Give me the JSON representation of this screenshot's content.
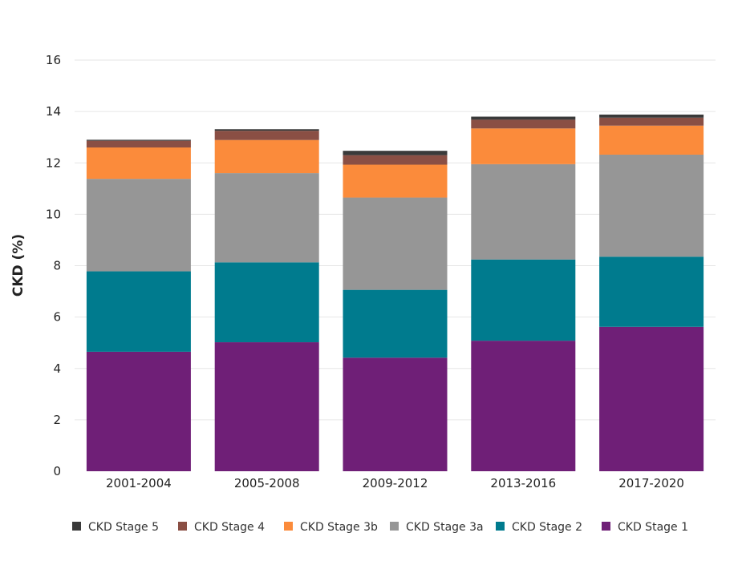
{
  "chart_data": {
    "type": "bar",
    "stacked": true,
    "title": "",
    "xlabel": "",
    "ylabel": "CKD (%)",
    "ylim": [
      0,
      16
    ],
    "yticks": [
      0,
      2,
      4,
      6,
      8,
      10,
      12,
      14,
      16
    ],
    "categories": [
      "2001-2004",
      "2005-2008",
      "2009-2012",
      "2013-2016",
      "2017-2020"
    ],
    "series": [
      {
        "name": "CKD Stage 1",
        "color": "#6f1f77",
        "values": [
          4.65,
          5.02,
          4.42,
          5.08,
          5.62
        ]
      },
      {
        "name": "CKD Stage 2",
        "color": "#007b8e",
        "values": [
          3.13,
          3.11,
          2.64,
          3.16,
          2.73
        ]
      },
      {
        "name": "CKD Stage 3a",
        "color": "#969696",
        "values": [
          3.6,
          3.47,
          3.59,
          3.71,
          3.97
        ]
      },
      {
        "name": "CKD Stage 3b",
        "color": "#fb8b3b",
        "values": [
          1.22,
          1.29,
          1.28,
          1.39,
          1.13
        ]
      },
      {
        "name": "CKD Stage 4",
        "color": "#8a4f44",
        "values": [
          0.26,
          0.36,
          0.37,
          0.34,
          0.31
        ]
      },
      {
        "name": "CKD Stage 5",
        "color": "#3a3a3a",
        "values": [
          0.04,
          0.06,
          0.17,
          0.12,
          0.12
        ]
      }
    ],
    "legend": {
      "position": "bottom",
      "order": [
        "CKD Stage 5",
        "CKD Stage 4",
        "CKD Stage 3b",
        "CKD Stage 3a",
        "CKD Stage 2",
        "CKD Stage 1"
      ]
    },
    "grid": true
  }
}
